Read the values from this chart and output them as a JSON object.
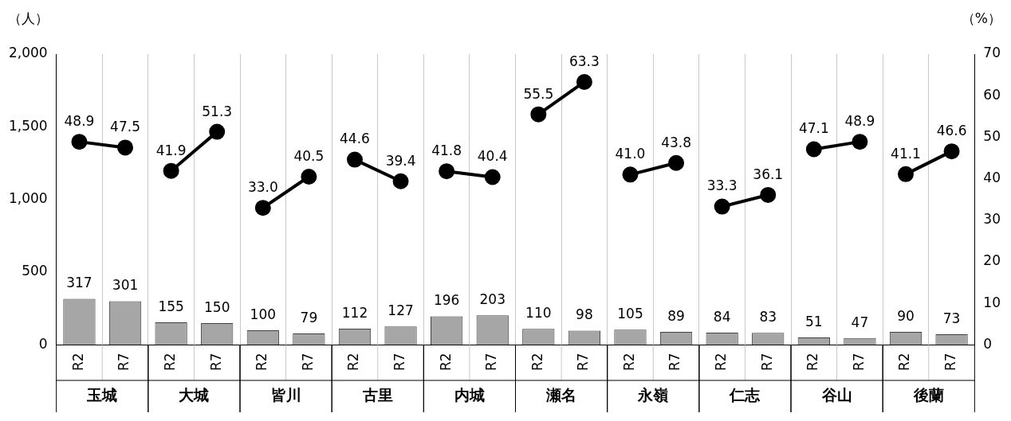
{
  "chart_data": {
    "type": "bar",
    "ylabel": "（人）",
    "y2label": "（%）",
    "categories": [
      "R2",
      "R7",
      "R2",
      "R7",
      "R2",
      "R7",
      "R2",
      "R7",
      "R2",
      "R7",
      "R2",
      "R7",
      "R2",
      "R7",
      "R2",
      "R7",
      "R2",
      "R7",
      "R2",
      "R7"
    ],
    "annotations": [
      "玉城",
      "大城",
      "皆川",
      "古里",
      "内城",
      "瀬名",
      "永嶺",
      "仁志",
      "谷山",
      "後蘭"
    ],
    "series": [
      {
        "color": "#a6a6a6",
        "values": [
          317,
          301,
          155,
          150,
          100,
          79,
          112,
          127,
          196,
          203,
          110,
          98,
          105,
          89,
          84,
          83,
          51,
          47,
          90,
          73
        ]
      },
      {
        "type": "line",
        "axis": "y2",
        "color": "#000000",
        "values": [
          48.9,
          47.5,
          null,
          null,
          null,
          null,
          null,
          null,
          null,
          null,
          null,
          null,
          null,
          null,
          null,
          null,
          null,
          null,
          null,
          null
        ]
      },
      {
        "type": "line",
        "axis": "y2",
        "color": "#000000",
        "values": [
          null,
          null,
          41.9,
          51.3,
          null,
          null,
          null,
          null,
          null,
          null,
          null,
          null,
          null,
          null,
          null,
          null,
          null,
          null,
          null,
          null
        ]
      },
      {
        "type": "line",
        "axis": "y2",
        "color": "#000000",
        "values": [
          null,
          null,
          null,
          null,
          33.0,
          40.5,
          null,
          null,
          null,
          null,
          null,
          null,
          null,
          null,
          null,
          null,
          null,
          null,
          null,
          null
        ],
        "value_labels": [
          null,
          null,
          null,
          null,
          "33.0",
          "40.5",
          null,
          null,
          null,
          null,
          null,
          null,
          null,
          null,
          null,
          null,
          null,
          null,
          null,
          null
        ]
      },
      {
        "type": "line",
        "axis": "y2",
        "color": "#000000",
        "values": [
          null,
          null,
          null,
          null,
          null,
          null,
          44.6,
          39.4,
          null,
          null,
          null,
          null,
          null,
          null,
          null,
          null,
          null,
          null,
          null,
          null
        ]
      },
      {
        "type": "line",
        "axis": "y2",
        "color": "#000000",
        "values": [
          null,
          null,
          null,
          null,
          null,
          null,
          null,
          null,
          41.8,
          40.4,
          null,
          null,
          null,
          null,
          null,
          null,
          null,
          null,
          null,
          null
        ]
      },
      {
        "type": "line",
        "axis": "y2",
        "color": "#000000",
        "values": [
          null,
          null,
          null,
          null,
          null,
          null,
          null,
          null,
          null,
          null,
          55.5,
          63.3,
          null,
          null,
          null,
          null,
          null,
          null,
          null,
          null
        ]
      },
      {
        "type": "line",
        "axis": "y2",
        "color": "#000000",
        "values": [
          null,
          null,
          null,
          null,
          null,
          null,
          null,
          null,
          null,
          null,
          null,
          null,
          41.0,
          43.8,
          null,
          null,
          null,
          null,
          null,
          null
        ],
        "value_labels": [
          null,
          null,
          null,
          null,
          null,
          null,
          null,
          null,
          null,
          null,
          null,
          null,
          "41.0",
          "43.8",
          null,
          null,
          null,
          null,
          null,
          null
        ]
      },
      {
        "type": "line",
        "axis": "y2",
        "color": "#000000",
        "values": [
          null,
          null,
          null,
          null,
          null,
          null,
          null,
          null,
          null,
          null,
          null,
          null,
          null,
          null,
          33.3,
          36.1,
          null,
          null,
          null,
          null
        ]
      },
      {
        "type": "line",
        "axis": "y2",
        "color": "#000000",
        "values": [
          null,
          null,
          null,
          null,
          null,
          null,
          null,
          null,
          null,
          null,
          null,
          null,
          null,
          null,
          null,
          null,
          47.1,
          48.9,
          null,
          null
        ]
      },
      {
        "type": "line",
        "axis": "y2",
        "color": "#000000",
        "values": [
          null,
          null,
          null,
          null,
          null,
          null,
          null,
          null,
          null,
          null,
          null,
          null,
          null,
          null,
          null,
          null,
          null,
          null,
          41.1,
          46.6
        ]
      }
    ],
    "ylim": [
      0,
      2000
    ],
    "yticks": [
      0,
      {
        "value": 500,
        "label": "500"
      },
      {
        "value": 1000,
        "label": "1,000"
      },
      {
        "value": 1500,
        "label": "1,500"
      },
      {
        "value": 2000,
        "label": "2,000"
      }
    ],
    "y2lim": [
      0,
      70
    ],
    "y2ticks": [
      0,
      10,
      20,
      30,
      40,
      50,
      60,
      70
    ],
    "grid": "x",
    "legend": false,
    "marker": "circle",
    "line_style": "solid",
    "data_labels": true
  }
}
